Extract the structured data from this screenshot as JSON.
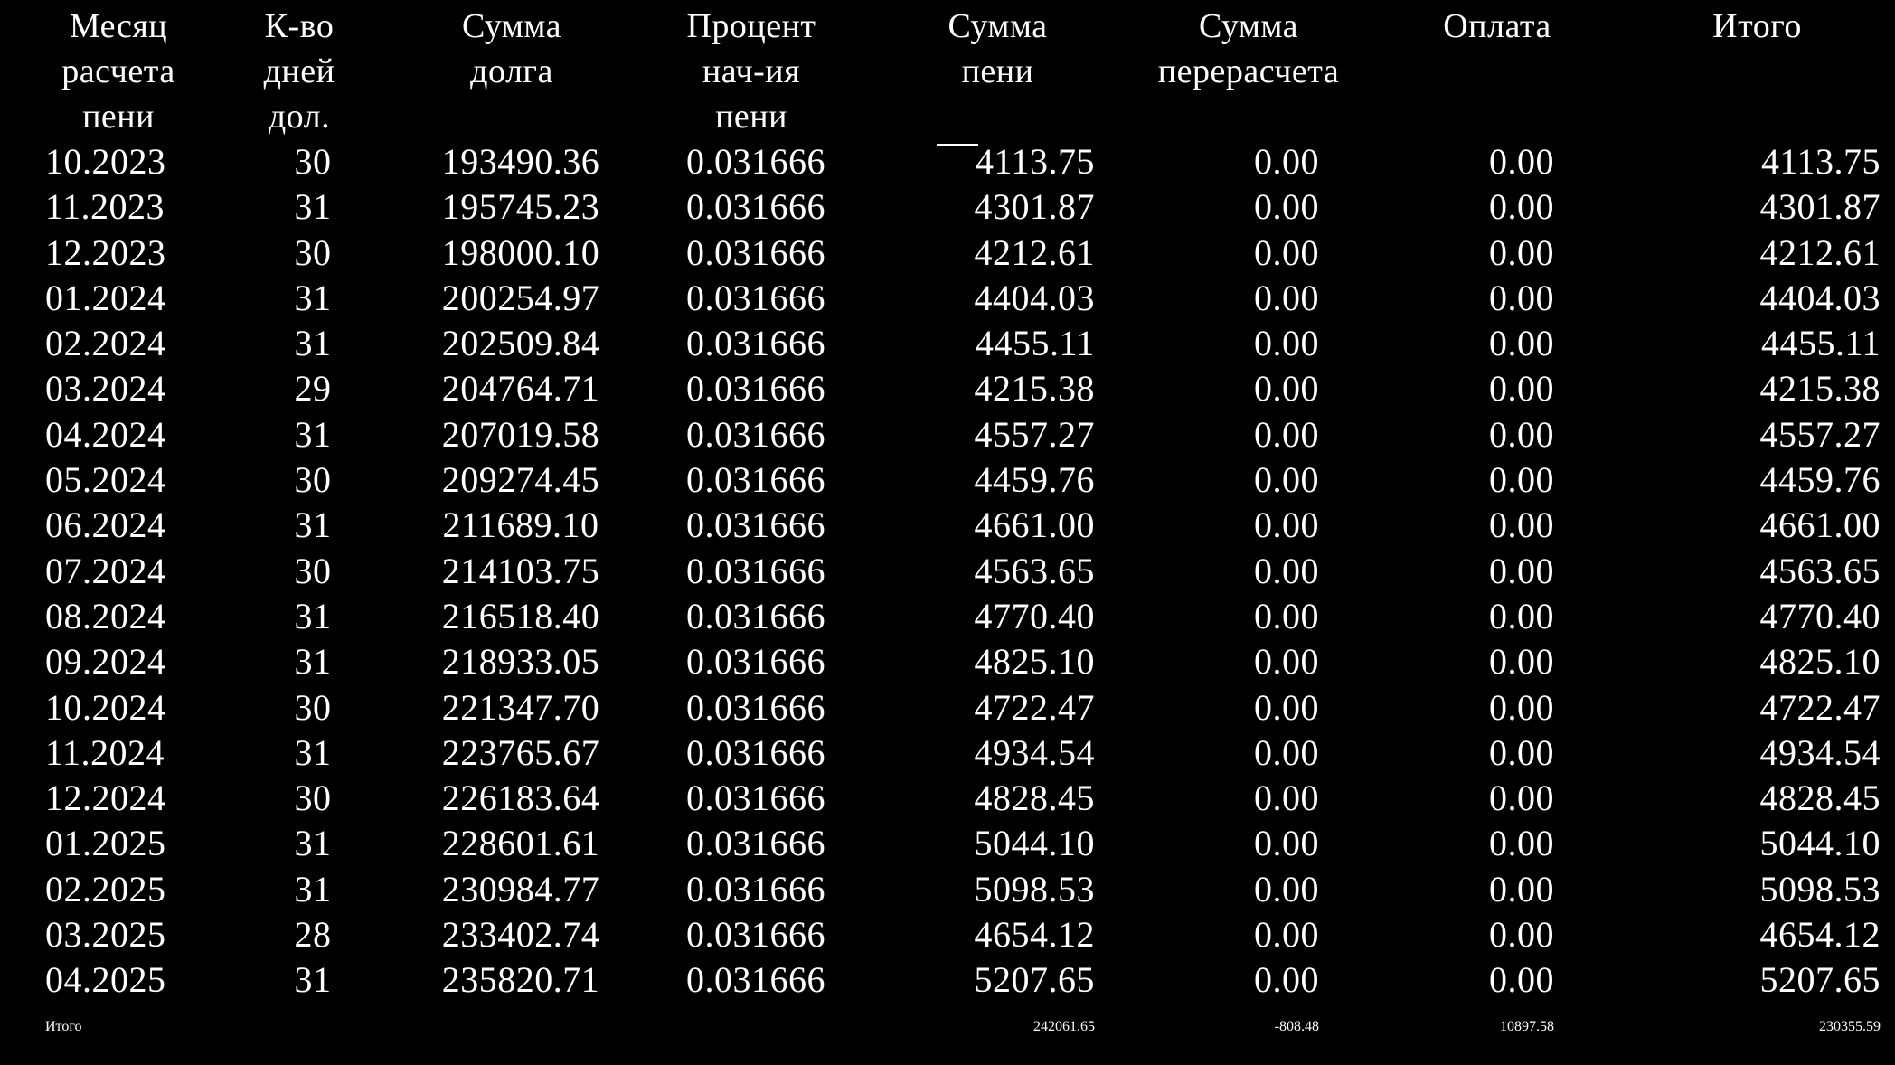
{
  "table": {
    "headers": {
      "month": "Месяц\nрасчета\nпени",
      "days": "К-во\nдней\nдол.",
      "debt": "Сумма\nдолга",
      "percent": "Процент\nнач-ия\nпени",
      "penalty": "Сумма\nпени",
      "recalc": "Сумма\nперерасчета",
      "payment": "Оплата",
      "total": "Итого"
    },
    "rows": [
      {
        "month": "10.2023",
        "days": "30",
        "debt": "193490.36",
        "percent": "0.031666",
        "penalty": "4113.75",
        "recalc": "0.00",
        "payment": "0.00",
        "total": "4113.75"
      },
      {
        "month": "11.2023",
        "days": "31",
        "debt": "195745.23",
        "percent": "0.031666",
        "penalty": "4301.87",
        "recalc": "0.00",
        "payment": "0.00",
        "total": "4301.87"
      },
      {
        "month": "12.2023",
        "days": "30",
        "debt": "198000.10",
        "percent": "0.031666",
        "penalty": "4212.61",
        "recalc": "0.00",
        "payment": "0.00",
        "total": "4212.61"
      },
      {
        "month": "01.2024",
        "days": "31",
        "debt": "200254.97",
        "percent": "0.031666",
        "penalty": "4404.03",
        "recalc": "0.00",
        "payment": "0.00",
        "total": "4404.03"
      },
      {
        "month": "02.2024",
        "days": "31",
        "debt": "202509.84",
        "percent": "0.031666",
        "penalty": "4455.11",
        "recalc": "0.00",
        "payment": "0.00",
        "total": "4455.11"
      },
      {
        "month": "03.2024",
        "days": "29",
        "debt": "204764.71",
        "percent": "0.031666",
        "penalty": "4215.38",
        "recalc": "0.00",
        "payment": "0.00",
        "total": "4215.38"
      },
      {
        "month": "04.2024",
        "days": "31",
        "debt": "207019.58",
        "percent": "0.031666",
        "penalty": "4557.27",
        "recalc": "0.00",
        "payment": "0.00",
        "total": "4557.27"
      },
      {
        "month": "05.2024",
        "days": "30",
        "debt": "209274.45",
        "percent": "0.031666",
        "penalty": "4459.76",
        "recalc": "0.00",
        "payment": "0.00",
        "total": "4459.76"
      },
      {
        "month": "06.2024",
        "days": "31",
        "debt": "211689.10",
        "percent": "0.031666",
        "penalty": "4661.00",
        "recalc": "0.00",
        "payment": "0.00",
        "total": "4661.00"
      },
      {
        "month": "07.2024",
        "days": "30",
        "debt": "214103.75",
        "percent": "0.031666",
        "penalty": "4563.65",
        "recalc": "0.00",
        "payment": "0.00",
        "total": "4563.65"
      },
      {
        "month": "08.2024",
        "days": "31",
        "debt": "216518.40",
        "percent": "0.031666",
        "penalty": "4770.40",
        "recalc": "0.00",
        "payment": "0.00",
        "total": "4770.40"
      },
      {
        "month": "09.2024",
        "days": "31",
        "debt": "218933.05",
        "percent": "0.031666",
        "penalty": "4825.10",
        "recalc": "0.00",
        "payment": "0.00",
        "total": "4825.10"
      },
      {
        "month": "10.2024",
        "days": "30",
        "debt": "221347.70",
        "percent": "0.031666",
        "penalty": "4722.47",
        "recalc": "0.00",
        "payment": "0.00",
        "total": "4722.47"
      },
      {
        "month": "11.2024",
        "days": "31",
        "debt": "223765.67",
        "percent": "0.031666",
        "penalty": "4934.54",
        "recalc": "0.00",
        "payment": "0.00",
        "total": "4934.54"
      },
      {
        "month": "12.2024",
        "days": "30",
        "debt": "226183.64",
        "percent": "0.031666",
        "penalty": "4828.45",
        "recalc": "0.00",
        "payment": "0.00",
        "total": "4828.45"
      },
      {
        "month": "01.2025",
        "days": "31",
        "debt": "228601.61",
        "percent": "0.031666",
        "penalty": "5044.10",
        "recalc": "0.00",
        "payment": "0.00",
        "total": "5044.10"
      },
      {
        "month": "02.2025",
        "days": "31",
        "debt": "230984.77",
        "percent": "0.031666",
        "penalty": "5098.53",
        "recalc": "0.00",
        "payment": "0.00",
        "total": "5098.53"
      },
      {
        "month": "03.2025",
        "days": "28",
        "debt": "233402.74",
        "percent": "0.031666",
        "penalty": "4654.12",
        "recalc": "0.00",
        "payment": "0.00",
        "total": "4654.12"
      },
      {
        "month": "04.2025",
        "days": "31",
        "debt": "235820.71",
        "percent": "0.031666",
        "penalty": "5207.65",
        "recalc": "0.00",
        "payment": "0.00",
        "total": "5207.65"
      }
    ],
    "totals": {
      "label": "Итого",
      "penalty": "242061.65",
      "recalc": "-808.48",
      "payment": "10897.58",
      "total": "230355.59"
    }
  },
  "colors": {
    "background": "#000000",
    "text": "#ffffff"
  }
}
